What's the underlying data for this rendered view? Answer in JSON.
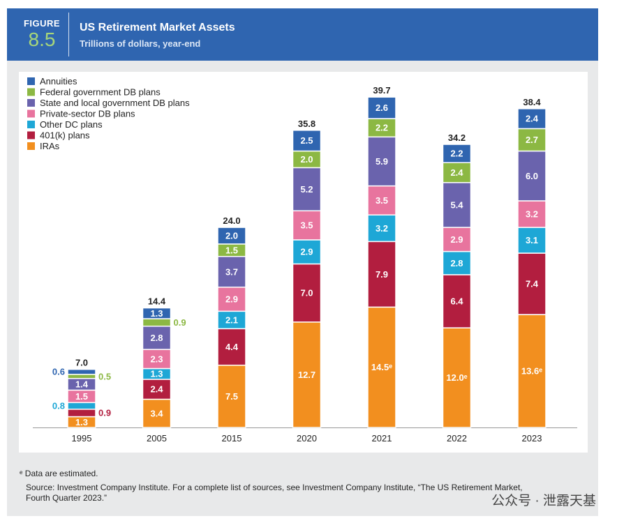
{
  "header": {
    "figure_label": "FIGURE",
    "figure_number": "8.5",
    "title": "US Retirement Market Assets",
    "subtitle": "Trillions of dollars, year-end"
  },
  "chart_data": {
    "type": "bar",
    "stacked": true,
    "title": "US Retirement Market Assets",
    "subtitle": "Trillions of dollars, year-end",
    "xlabel": "",
    "ylabel": "Trillions of dollars",
    "ylim": [
      0,
      42
    ],
    "grid": false,
    "legend_position": "top-left",
    "categories": [
      "1995",
      "2005",
      "2015",
      "2020",
      "2021",
      "2022",
      "2023"
    ],
    "series": [
      {
        "name": "IRAs",
        "color": "#f28f1f",
        "values": [
          1.3,
          3.4,
          7.5,
          12.7,
          14.5,
          12.0,
          13.6
        ],
        "labels": [
          "1.3",
          "3.4",
          "7.5",
          "12.7",
          "14.5ᵉ",
          "12.0ᵉ",
          "13.6ᵉ"
        ]
      },
      {
        "name": "401(k) plans",
        "color": "#b21e3f",
        "values": [
          0.9,
          2.4,
          4.4,
          7.0,
          7.9,
          6.4,
          7.4
        ],
        "labels": [
          "0.9",
          "2.4",
          "4.4",
          "7.0",
          "7.9",
          "6.4",
          "7.4"
        ]
      },
      {
        "name": "Other DC plans",
        "color": "#1ea7d6",
        "values": [
          0.8,
          1.3,
          2.1,
          2.9,
          3.2,
          2.8,
          3.1
        ],
        "labels": [
          "0.8",
          "1.3",
          "2.1",
          "2.9",
          "3.2",
          "2.8",
          "3.1"
        ]
      },
      {
        "name": "Private-sector DB plans",
        "color": "#e8749e",
        "values": [
          1.5,
          2.3,
          2.9,
          3.5,
          3.5,
          2.9,
          3.2
        ],
        "labels": [
          "1.5",
          "2.3",
          "2.9",
          "3.5",
          "3.5",
          "2.9",
          "3.2"
        ]
      },
      {
        "name": "State and local government DB plans",
        "color": "#6a63ad",
        "values": [
          1.4,
          2.8,
          3.7,
          5.2,
          5.9,
          5.4,
          6.0
        ],
        "labels": [
          "1.4",
          "2.8",
          "3.7",
          "5.2",
          "5.9",
          "5.4",
          "6.0"
        ]
      },
      {
        "name": "Federal government DB plans",
        "color": "#8cb843",
        "values": [
          0.5,
          0.9,
          1.5,
          2.0,
          2.2,
          2.4,
          2.7
        ],
        "labels": [
          "0.5",
          "0.9",
          "1.5",
          "2.0",
          "2.2",
          "2.4",
          "2.7"
        ]
      },
      {
        "name": "Annuities",
        "color": "#2f65b0",
        "values": [
          0.6,
          1.3,
          2.0,
          2.5,
          2.6,
          2.2,
          2.4
        ],
        "labels": [
          "0.6",
          "1.3",
          "2.0",
          "2.5",
          "2.6",
          "2.2",
          "2.4"
        ]
      }
    ],
    "legend_order": [
      "Annuities",
      "Federal government DB plans",
      "State and local government DB plans",
      "Private-sector DB plans",
      "Other DC plans",
      "401(k) plans",
      "IRAs"
    ],
    "totals": [
      "7.0",
      "14.4",
      "24.0",
      "35.8",
      "39.7",
      "34.2",
      "38.4"
    ]
  },
  "footnotes": {
    "estimated": "ᵉ Data are estimated.",
    "source_line1": "Source: Investment Company Institute. For a complete list of sources, see Investment Company Institute, “The US Retirement Market,",
    "source_line2": "Fourth Quarter 2023.”"
  },
  "watermark": "公众号 · 泄露天基"
}
